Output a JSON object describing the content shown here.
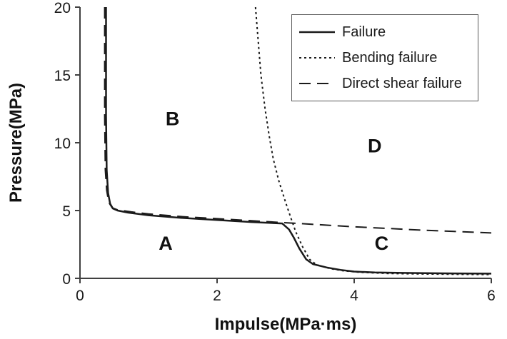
{
  "chart_data": {
    "type": "line",
    "title": "",
    "xlabel": "Impulse(MPa·ms)",
    "ylabel": "Pressure(MPa)",
    "xlim": [
      0,
      6
    ],
    "ylim": [
      0,
      20
    ],
    "xticks": [
      0,
      2,
      4,
      6
    ],
    "yticks": [
      0,
      5,
      10,
      15,
      20
    ],
    "grid": false,
    "legend_position": "top-right",
    "line_color": "#1a1a1a",
    "series": [
      {
        "name": "Failure",
        "style": "solid",
        "points": [
          [
            0.38,
            20
          ],
          [
            0.38,
            12
          ],
          [
            0.39,
            8
          ],
          [
            0.41,
            6.3
          ],
          [
            0.44,
            5.5
          ],
          [
            0.48,
            5.15
          ],
          [
            0.55,
            5.0
          ],
          [
            0.7,
            4.85
          ],
          [
            1.0,
            4.65
          ],
          [
            1.5,
            4.45
          ],
          [
            2.0,
            4.3
          ],
          [
            2.5,
            4.15
          ],
          [
            2.95,
            4.05
          ],
          [
            3.05,
            3.6
          ],
          [
            3.12,
            3.0
          ],
          [
            3.2,
            2.2
          ],
          [
            3.3,
            1.4
          ],
          [
            3.4,
            1.05
          ],
          [
            3.6,
            0.8
          ],
          [
            3.8,
            0.62
          ],
          [
            4.0,
            0.5
          ],
          [
            4.3,
            0.43
          ],
          [
            4.7,
            0.4
          ],
          [
            5.3,
            0.37
          ],
          [
            6.0,
            0.35
          ]
        ]
      },
      {
        "name": "Bending failure",
        "style": "dotted",
        "points": [
          [
            2.56,
            20
          ],
          [
            2.6,
            17.5
          ],
          [
            2.64,
            15
          ],
          [
            2.7,
            12.5
          ],
          [
            2.76,
            10.5
          ],
          [
            2.82,
            8.8
          ],
          [
            2.9,
            7.2
          ],
          [
            3.0,
            5.6
          ],
          [
            3.08,
            4.4
          ],
          [
            3.15,
            3.4
          ],
          [
            3.25,
            2.3
          ],
          [
            3.35,
            1.4
          ],
          [
            3.45,
            1.0
          ],
          [
            3.65,
            0.72
          ],
          [
            3.85,
            0.55
          ],
          [
            4.1,
            0.44
          ],
          [
            4.5,
            0.36
          ],
          [
            5.0,
            0.32
          ],
          [
            6.0,
            0.28
          ]
        ]
      },
      {
        "name": "Direct shear failure",
        "style": "dashed",
        "points": [
          [
            0.36,
            20
          ],
          [
            0.36,
            12
          ],
          [
            0.37,
            8
          ],
          [
            0.39,
            6.5
          ],
          [
            0.42,
            5.6
          ],
          [
            0.47,
            5.2
          ],
          [
            0.55,
            5.05
          ],
          [
            0.75,
            4.9
          ],
          [
            1.0,
            4.75
          ],
          [
            1.5,
            4.55
          ],
          [
            2.0,
            4.4
          ],
          [
            2.5,
            4.25
          ],
          [
            3.0,
            4.1
          ],
          [
            3.5,
            3.95
          ],
          [
            4.0,
            3.8
          ],
          [
            4.5,
            3.68
          ],
          [
            5.0,
            3.55
          ],
          [
            5.5,
            3.45
          ],
          [
            6.0,
            3.35
          ]
        ]
      }
    ],
    "annotations": [
      {
        "label": "A",
        "x": 1.25,
        "y": 2.1
      },
      {
        "label": "B",
        "x": 1.35,
        "y": 11.3
      },
      {
        "label": "C",
        "x": 4.4,
        "y": 2.1
      },
      {
        "label": "D",
        "x": 4.3,
        "y": 9.3
      }
    ]
  }
}
